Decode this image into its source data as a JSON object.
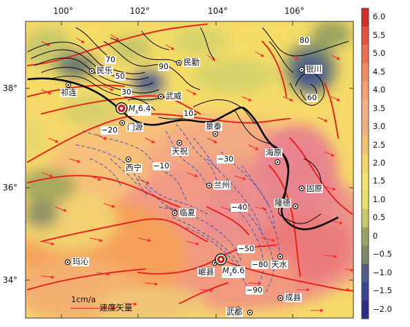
{
  "axes": {
    "x_ticks": [
      "100°",
      "102°",
      "104°",
      "106°"
    ],
    "y_ticks": [
      "38°",
      "36°",
      "34°"
    ]
  },
  "colorbar": {
    "ticks": [
      "6.0",
      "5.5",
      "5.0",
      "4.5",
      "4.0",
      "3.5",
      "3.0",
      "2.5",
      "2.0",
      "1.5",
      "1.0",
      "0.5",
      "0",
      "−0.5",
      "−1.0",
      "−1.5",
      "−2.0"
    ],
    "colors": [
      "#d62b2b",
      "#e8513d",
      "#ef6f4e",
      "#f48a5f",
      "#f6a074",
      "#f4b285",
      "#efb27a",
      "#f3c271",
      "#f6d46a",
      "#f3e36a",
      "#e6e06b",
      "#c9c86a",
      "#9aa361",
      "#7b8a6a",
      "#4f5d86",
      "#3a4691",
      "#2c2f86"
    ]
  },
  "cities": [
    {
      "name": "民勤",
      "icon": "city-marker"
    },
    {
      "name": "民乐",
      "icon": "city-marker"
    },
    {
      "name": "祁连",
      "icon": "city-marker"
    },
    {
      "name": "武威",
      "icon": "city-marker"
    },
    {
      "name": "银川",
      "icon": "city-marker"
    },
    {
      "name": "门源",
      "icon": "city-marker"
    },
    {
      "name": "景泰",
      "icon": "city-marker"
    },
    {
      "name": "天祝",
      "icon": "city-marker"
    },
    {
      "name": "海原",
      "icon": "city-marker"
    },
    {
      "name": "西宁",
      "icon": "city-marker"
    },
    {
      "name": "兰州",
      "icon": "city-marker"
    },
    {
      "name": "固原",
      "icon": "city-marker"
    },
    {
      "name": "隆德",
      "icon": "city-marker"
    },
    {
      "name": "临夏",
      "icon": "city-marker"
    },
    {
      "name": "玛沁",
      "icon": "city-marker"
    },
    {
      "name": "天水",
      "icon": "city-marker"
    },
    {
      "name": "岷县",
      "icon": "city-marker"
    },
    {
      "name": "成县",
      "icon": "city-marker"
    },
    {
      "name": "武都",
      "icon": "city-marker"
    }
  ],
  "earthquakes": [
    {
      "label_main": "M",
      "label_sub": "s",
      "label_mag": "6.4",
      "icon": "epicenter-marker"
    },
    {
      "label_main": "M",
      "label_sub": "s",
      "label_mag": "6.6",
      "icon": "epicenter-marker"
    }
  ],
  "contour_labels": [
    "70",
    "50",
    "30",
    "90",
    "10",
    "80",
    "60",
    "−20",
    "−10",
    "−30",
    "−40",
    "−50",
    "−80",
    "−90"
  ],
  "legend": {
    "scale": "1cm/a",
    "title": "速度矢量"
  }
}
